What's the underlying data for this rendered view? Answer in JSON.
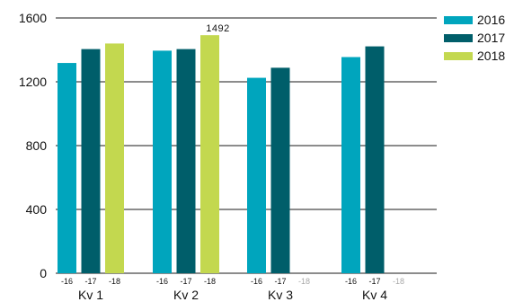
{
  "chart_data": {
    "type": "bar",
    "categories": [
      "Kv 1",
      "Kv 2",
      "Kv 3",
      "Kv 4"
    ],
    "series": [
      {
        "name": "2016",
        "short": "-16",
        "color": "#00a5bd",
        "values": [
          1318,
          1395,
          1225,
          1355
        ]
      },
      {
        "name": "2017",
        "short": "-17",
        "color": "#005e6a",
        "values": [
          1405,
          1405,
          1288,
          1422
        ]
      },
      {
        "name": "2018",
        "short": "-18",
        "color": "#c3d84f",
        "values": [
          1440,
          1492,
          null,
          null
        ]
      }
    ],
    "yticks": [
      0,
      400,
      800,
      1200,
      1600
    ],
    "ylim": [
      0,
      1600
    ],
    "grid": true,
    "legend_position": "top-right",
    "data_labels": [
      {
        "category": "Kv 2",
        "series": "2018",
        "text": "1492"
      }
    ]
  }
}
